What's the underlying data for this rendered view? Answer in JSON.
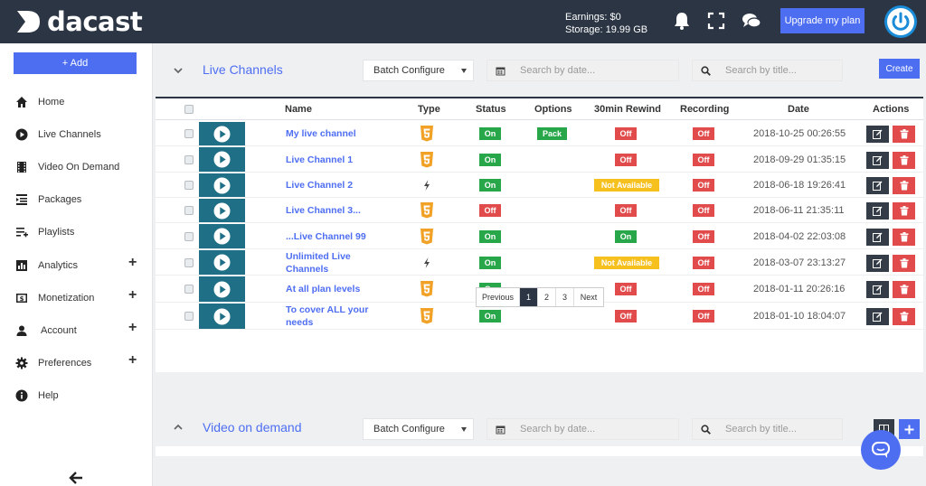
{
  "topbar": {
    "logo_text": "dacast",
    "earnings": "Earnings: $0",
    "storage": "Storage: 19.99 GB",
    "upgrade_label": "Upgrade my plan"
  },
  "sidebar": {
    "add_label": "+ Add",
    "items": [
      {
        "label": "Home",
        "icon": "home-icon",
        "plus": ""
      },
      {
        "label": "Live Channels",
        "icon": "play-circle-icon",
        "plus": ""
      },
      {
        "label": "Video On Demand",
        "icon": "film-icon",
        "plus": ""
      },
      {
        "label": "Packages",
        "icon": "packages-icon",
        "plus": ""
      },
      {
        "label": "Playlists",
        "icon": "playlist-icon",
        "plus": ""
      },
      {
        "label": "Analytics",
        "icon": "bar-chart-icon",
        "plus": "+"
      },
      {
        "label": "Monetization",
        "icon": "dollar-icon",
        "plus": "+"
      },
      {
        "label": "Account",
        "icon": "user-icon",
        "plus": "+"
      },
      {
        "label": "Preferences",
        "icon": "gear-icon",
        "plus": "+"
      },
      {
        "label": "Help",
        "icon": "info-icon",
        "plus": ""
      }
    ]
  },
  "live": {
    "title": "Live Channels",
    "batch_label": "Batch Configure",
    "date_placeholder": "Search by date...",
    "title_placeholder": "Search by title...",
    "create_label": "Create",
    "headers": {
      "name": "Name",
      "type": "Type",
      "status": "Status",
      "options": "Options",
      "rewind": "30min Rewind",
      "recording": "Recording",
      "date": "Date",
      "actions": "Actions"
    },
    "rows": [
      {
        "name1": "My live channel",
        "name2": "",
        "type": "html5",
        "status": "On",
        "options": "Pack",
        "rewind": "Off",
        "recording": "Off",
        "date": "2018-10-25 00:26:55"
      },
      {
        "name1": "Live Channel 1",
        "name2": "",
        "type": "html5",
        "status": "On",
        "options": "",
        "rewind": "Off",
        "recording": "Off",
        "date": "2018-09-29 01:35:15"
      },
      {
        "name1": "Live Channel 2",
        "name2": "",
        "type": "flash",
        "status": "On",
        "options": "",
        "rewind": "Not Available",
        "recording": "Off",
        "date": "2018-06-18 19:26:41"
      },
      {
        "name1": "Live Channel 3...",
        "name2": "",
        "type": "html5",
        "status": "Off",
        "options": "",
        "rewind": "Off",
        "recording": "Off",
        "date": "2018-06-11 21:35:11"
      },
      {
        "name1": "...Live Channel 99",
        "name2": "",
        "type": "html5",
        "status": "On",
        "options": "",
        "rewind": "On",
        "recording": "Off",
        "date": "2018-04-02 22:03:08"
      },
      {
        "name1": "Unlimited Live",
        "name2": "Channels",
        "type": "flash",
        "status": "On",
        "options": "",
        "rewind": "Not Available",
        "recording": "Off",
        "date": "2018-03-07 23:13:27"
      },
      {
        "name1": "At all plan levels",
        "name2": "",
        "type": "html5",
        "status": "On",
        "options": "",
        "rewind": "Off",
        "recording": "Off",
        "date": "2018-01-11 20:26:16"
      },
      {
        "name1": "To cover ALL your",
        "name2": "needs",
        "type": "html5",
        "status": "On",
        "options": "",
        "rewind": "Off",
        "recording": "Off",
        "date": "2018-01-10 18:04:07"
      }
    ],
    "pagination": {
      "previous": "Previous",
      "pages": [
        "1",
        "2",
        "3"
      ],
      "next": "Next",
      "active": "1"
    }
  },
  "vod": {
    "title": "Video on demand",
    "batch_label": "Batch Configure",
    "date_placeholder": "Search by date...",
    "title_placeholder": "Search by title..."
  },
  "colors": {
    "brand": "#4e6ef2",
    "topbar": "#2b3544",
    "green": "#27a74a",
    "red": "#e24b4b",
    "yellow": "#f6c01f",
    "html5_orange": "#f1a125"
  }
}
